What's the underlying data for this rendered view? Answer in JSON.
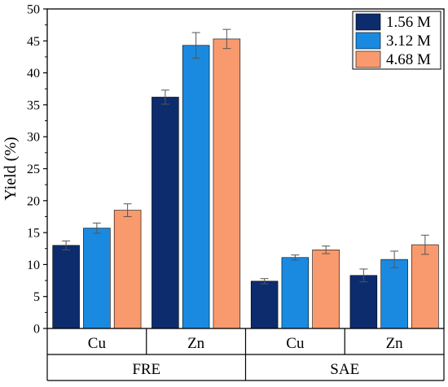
{
  "chart_data": {
    "type": "bar",
    "ylabel": "Yield (%)",
    "ylim": [
      0,
      50
    ],
    "yticks": [
      0,
      5,
      10,
      15,
      20,
      25,
      30,
      35,
      40,
      45,
      50
    ],
    "groups": [
      {
        "label": "FRE",
        "categories": [
          "Cu",
          "Zn"
        ]
      },
      {
        "label": "SAE",
        "categories": [
          "Cu",
          "Zn"
        ]
      }
    ],
    "categories": [
      "Cu",
      "Zn",
      "Cu",
      "Zn"
    ],
    "series": [
      {
        "name": "1.56 M",
        "color": "#0d2c6e",
        "values": [
          13.0,
          36.2,
          7.4,
          8.3
        ],
        "errors": [
          0.7,
          1.1,
          0.4,
          1.0
        ]
      },
      {
        "name": "3.12 M",
        "color": "#1a8ae0",
        "values": [
          15.7,
          44.3,
          11.1,
          10.8
        ],
        "errors": [
          0.8,
          2.0,
          0.4,
          1.3
        ]
      },
      {
        "name": "4.68 M",
        "color": "#f99a6e",
        "values": [
          18.5,
          45.3,
          12.3,
          13.1
        ],
        "errors": [
          1.0,
          1.5,
          0.6,
          1.5
        ]
      }
    ],
    "legend_position": "top-right",
    "grid": false
  }
}
